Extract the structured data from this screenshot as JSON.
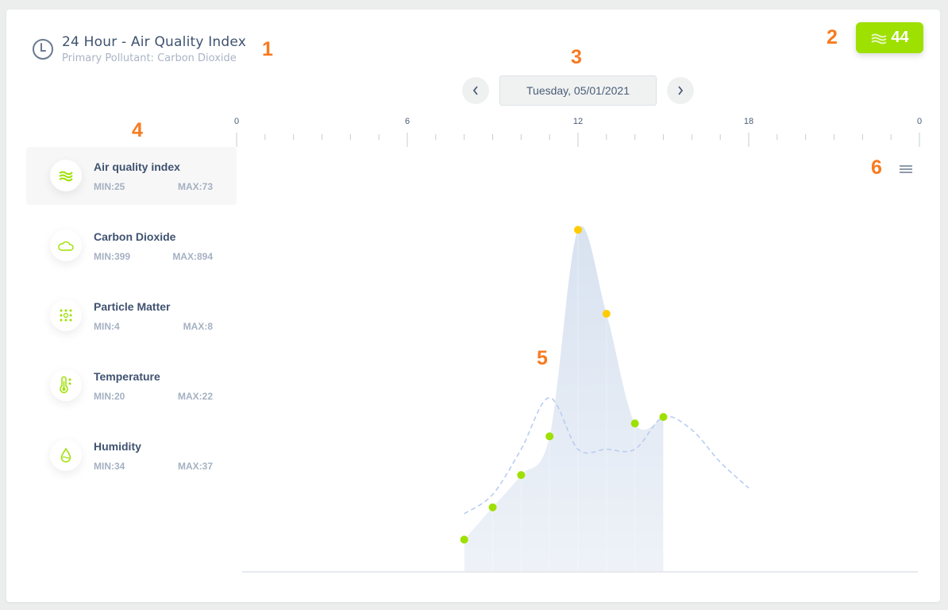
{
  "header": {
    "title": "24 Hour - Air Quality Index",
    "subtitle": "Primary Pollutant: Carbon Dioxide",
    "icon": "clock-icon"
  },
  "badge": {
    "value": "44",
    "icon": "wind-waves-icon",
    "color": "#9ee000"
  },
  "date_nav": {
    "date": "Tuesday, 05/01/2021",
    "prev_icon": "chevron-left-icon",
    "next_icon": "chevron-right-icon"
  },
  "annotations": [
    "1",
    "2",
    "3",
    "4",
    "5",
    "6"
  ],
  "sidebar": {
    "items": [
      {
        "name": "Air quality index",
        "min": "MIN:25",
        "max": "MAX:73",
        "icon": "wind-waves-icon",
        "active": true
      },
      {
        "name": "Carbon Dioxide",
        "min": "MIN:399",
        "max": "MAX:894",
        "icon": "cloud-icon"
      },
      {
        "name": "Particle Matter",
        "min": "MIN:4",
        "max": "MAX:8",
        "icon": "particles-icon"
      },
      {
        "name": "Temperature",
        "min": "MIN:20",
        "max": "MAX:22",
        "icon": "thermometer-icon"
      },
      {
        "name": "Humidity",
        "min": "MIN:34",
        "max": "MAX:37",
        "icon": "droplet-icon"
      }
    ]
  },
  "chart_menu_icon": "hamburger-menu-icon",
  "chart_data": {
    "type": "area",
    "x_tick_labels": [
      "0",
      "6",
      "12",
      "18",
      "0"
    ],
    "xlim": [
      0,
      24
    ],
    "ylim": [
      20,
      84
    ],
    "grid": false,
    "colors": {
      "good": "#9ee000",
      "moderate": "#ffcc00",
      "area": "#dbe4f1",
      "dashed": "#b9cdf0"
    },
    "series": [
      {
        "type": "area",
        "x": [
          8,
          9,
          10,
          11,
          12,
          13,
          14,
          15
        ],
        "values": [
          25,
          30,
          35,
          41,
          73,
          60,
          43,
          44
        ]
      },
      {
        "type": "dashed-line",
        "x": [
          8,
          9,
          10,
          11,
          12,
          13,
          14,
          15,
          16,
          17,
          18
        ],
        "values": [
          29,
          32,
          39,
          47,
          39,
          39,
          39,
          44,
          42,
          37,
          33
        ]
      }
    ]
  }
}
